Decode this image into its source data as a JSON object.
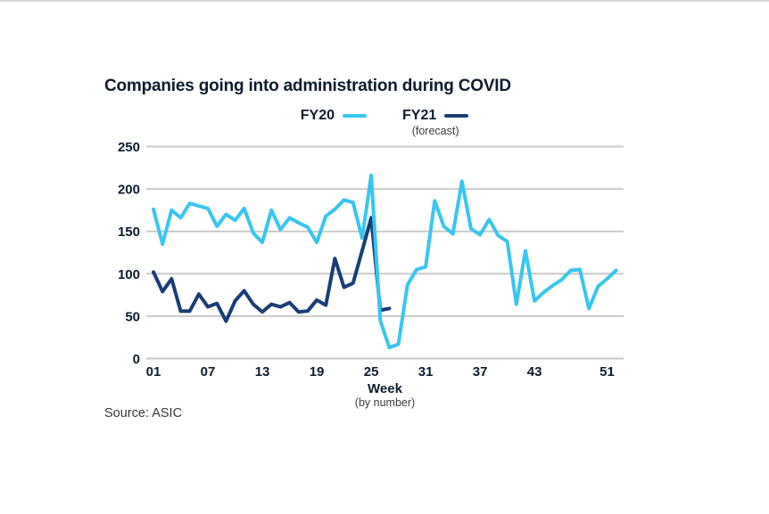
{
  "title": "Companies going into administration during COVID",
  "source": "Source: ASIC",
  "legend": {
    "fy20_label": "FY20",
    "fy21_label": "FY21",
    "fy21_note": "(forecast)"
  },
  "colors": {
    "fy20": "#38c6f0",
    "fy21": "#1a3d78",
    "text": "#0d1b2e",
    "grid": "#c9c9c9",
    "muted": "#3d3d3d"
  },
  "chart_data": {
    "type": "line",
    "title": "Companies going into administration during COVID",
    "xlabel": "Week",
    "xlabel_sub": "(by number)",
    "ylabel": "",
    "ylim": [
      0,
      250
    ],
    "yticks": [
      0,
      50,
      100,
      150,
      200,
      250
    ],
    "xtick_labels": [
      "01",
      "07",
      "13",
      "19",
      "25",
      "31",
      "37",
      "43",
      "51"
    ],
    "xtick_weeks": [
      1,
      7,
      13,
      19,
      25,
      31,
      37,
      43,
      51
    ],
    "grid": "horizontal",
    "legend_position": "top",
    "series": [
      {
        "name": "FY20",
        "color": "#38c6f0",
        "x": [
          1,
          2,
          3,
          4,
          5,
          6,
          7,
          8,
          9,
          10,
          11,
          12,
          13,
          14,
          15,
          16,
          17,
          18,
          19,
          20,
          21,
          22,
          23,
          24,
          25,
          26,
          27,
          28,
          29,
          30,
          31,
          32,
          33,
          34,
          35,
          36,
          37,
          38,
          39,
          40,
          41,
          42,
          43,
          44,
          45,
          46,
          47,
          48,
          49,
          50,
          51,
          52
        ],
        "values": [
          176,
          135,
          175,
          166,
          183,
          180,
          177,
          156,
          170,
          163,
          177,
          148,
          137,
          175,
          152,
          166,
          160,
          155,
          137,
          168,
          176,
          187,
          184,
          142,
          216,
          45,
          13,
          17,
          87,
          105,
          108,
          186,
          156,
          147,
          209,
          153,
          146,
          164,
          145,
          138,
          64,
          127,
          68,
          78,
          86,
          93,
          104,
          105,
          59,
          85,
          94,
          104
        ]
      },
      {
        "name": "FY21 (forecast)",
        "color": "#1a3d78",
        "x": [
          1,
          2,
          3,
          4,
          5,
          6,
          7,
          8,
          9,
          10,
          11,
          12,
          13,
          14,
          15,
          16,
          17,
          18,
          19,
          20,
          21,
          22,
          23,
          24,
          25,
          26,
          27
        ],
        "values": [
          102,
          79,
          94,
          56,
          56,
          76,
          61,
          65,
          44,
          68,
          80,
          64,
          55,
          64,
          61,
          66,
          55,
          56,
          69,
          63,
          118,
          84,
          89,
          127,
          166,
          57,
          59
        ]
      }
    ]
  }
}
